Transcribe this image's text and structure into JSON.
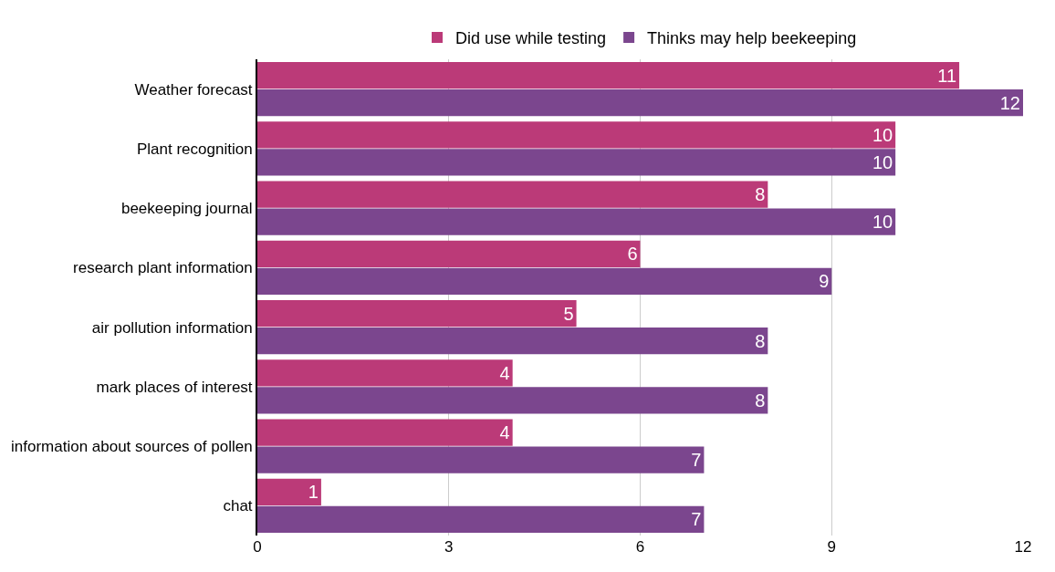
{
  "chart_data": {
    "type": "bar",
    "orientation": "horizontal",
    "categories": [
      "Weather forecast",
      "Plant recognition",
      "beekeeping journal",
      "research plant information",
      "air pollution information",
      "mark places of interest",
      "information about sources of pollen",
      "chat"
    ],
    "series": [
      {
        "name": "Did use while testing",
        "color": "#bb3a78",
        "values": [
          11,
          10,
          8,
          6,
          5,
          4,
          4,
          1
        ]
      },
      {
        "name": "Thinks may help beekeeping",
        "color": "#7b468e",
        "values": [
          12,
          10,
          10,
          9,
          8,
          8,
          7,
          7
        ]
      }
    ],
    "xlim": [
      0,
      12
    ],
    "xticks": [
      0,
      3,
      6,
      9,
      12
    ],
    "grid": "x",
    "legend": "top",
    "data_labels": true
  }
}
